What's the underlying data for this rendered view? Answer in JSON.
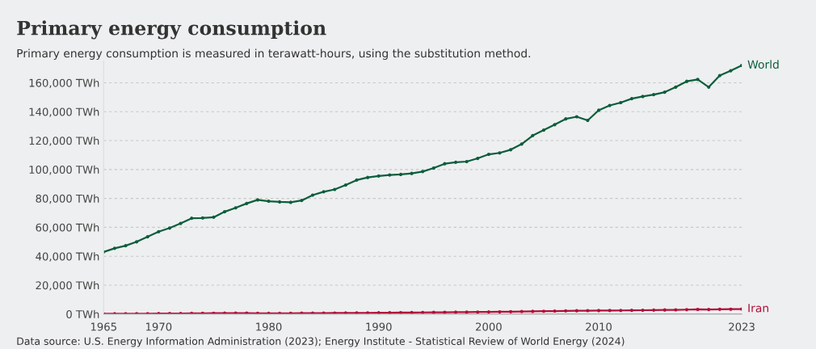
{
  "chart_data": {
    "type": "line",
    "title": "Primary energy consumption",
    "subtitle": "Primary energy consumption is measured in terawatt-hours, using the substitution method.",
    "x": [
      1965,
      1966,
      1967,
      1968,
      1969,
      1970,
      1971,
      1972,
      1973,
      1974,
      1975,
      1976,
      1977,
      1978,
      1979,
      1980,
      1981,
      1982,
      1983,
      1984,
      1985,
      1986,
      1987,
      1988,
      1989,
      1990,
      1991,
      1992,
      1993,
      1994,
      1995,
      1996,
      1997,
      1998,
      1999,
      2000,
      2001,
      2002,
      2003,
      2004,
      2005,
      2006,
      2007,
      2008,
      2009,
      2010,
      2011,
      2012,
      2013,
      2014,
      2015,
      2016,
      2017,
      2018,
      2019,
      2020,
      2021,
      2022,
      2023
    ],
    "series": [
      {
        "name": "World",
        "color": "#0b5e3c",
        "values": [
          43000,
          45500,
          47300,
          50000,
          53500,
          57000,
          59500,
          62700,
          66300,
          66500,
          67000,
          70800,
          73500,
          76500,
          79000,
          78100,
          77600,
          77300,
          78600,
          82300,
          84600,
          86200,
          89300,
          92700,
          94500,
          95500,
          96200,
          96600,
          97300,
          98600,
          101000,
          104000,
          105000,
          105500,
          107700,
          110500,
          111500,
          113700,
          117600,
          123500,
          127300,
          131000,
          135000,
          136500,
          134000,
          141000,
          144300,
          146300,
          149000,
          150500,
          151800,
          153500,
          157000,
          161000,
          162300,
          157000,
          165000,
          168300,
          172000
        ]
      },
      {
        "name": "Iran",
        "color": "#b0103a",
        "values": [
          200,
          220,
          250,
          280,
          310,
          350,
          400,
          450,
          520,
          580,
          600,
          650,
          700,
          680,
          560,
          500,
          520,
          560,
          620,
          660,
          700,
          740,
          780,
          820,
          860,
          900,
          960,
          1020,
          1080,
          1140,
          1200,
          1260,
          1320,
          1380,
          1440,
          1500,
          1580,
          1660,
          1760,
          1880,
          2000,
          2100,
          2200,
          2300,
          2380,
          2450,
          2500,
          2550,
          2600,
          2680,
          2750,
          2850,
          2950,
          3100,
          3250,
          3200,
          3350,
          3400,
          3500
        ]
      }
    ],
    "xlim": [
      1965,
      2023
    ],
    "xticks": [
      1965,
      1970,
      1980,
      1990,
      2000,
      2010,
      2023
    ],
    "ylim": [
      0,
      175000
    ],
    "yticks": [
      {
        "value": 0,
        "label": "0 TWh"
      },
      {
        "value": 20000,
        "label": "20,000 TWh"
      },
      {
        "value": 40000,
        "label": "40,000 TWh"
      },
      {
        "value": 60000,
        "label": "60,000 TWh"
      },
      {
        "value": 80000,
        "label": "80,000 TWh"
      },
      {
        "value": 100000,
        "label": "100,000 TWh"
      },
      {
        "value": 120000,
        "label": "120,000 TWh"
      },
      {
        "value": 140000,
        "label": "140,000 TWh"
      },
      {
        "value": 160000,
        "label": "160,000 TWh"
      }
    ],
    "grid": "y",
    "legend": false,
    "marker": "circle",
    "line_style": "solid",
    "annotations": [
      "Data source: U.S. Energy Information Administration (2023); Energy Institute - Statistical Review of World Energy (2024)"
    ]
  }
}
